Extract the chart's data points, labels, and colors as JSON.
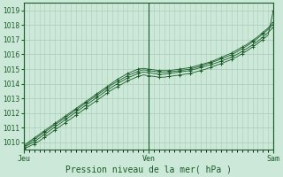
{
  "title": "",
  "xlabel": "Pression niveau de la mer( hPa )",
  "ylabel": "",
  "bg_color": "#cce8d8",
  "grid_color": "#aaccb8",
  "line_color": "#1a5c28",
  "marker_color": "#1a5c28",
  "ylim": [
    1009.5,
    1019.5
  ],
  "xlim": [
    0,
    48
  ],
  "yticks": [
    1010,
    1011,
    1012,
    1013,
    1014,
    1015,
    1016,
    1017,
    1018,
    1019
  ],
  "xtick_positions": [
    0,
    24,
    48
  ],
  "xtick_labels": [
    "Jeu",
    "Ven",
    "Sam"
  ],
  "series": [
    [
      1009.8,
      1010.05,
      1010.3,
      1010.55,
      1010.8,
      1011.05,
      1011.3,
      1011.55,
      1011.8,
      1012.05,
      1012.3,
      1012.55,
      1012.8,
      1013.05,
      1013.3,
      1013.55,
      1013.8,
      1014.05,
      1014.3,
      1014.5,
      1014.7,
      1014.85,
      1015.0,
      1015.05,
      1015.0,
      1014.95,
      1014.9,
      1014.9,
      1014.9,
      1014.95,
      1015.0,
      1015.05,
      1015.1,
      1015.2,
      1015.3,
      1015.4,
      1015.5,
      1015.65,
      1015.8,
      1015.95,
      1016.1,
      1016.3,
      1016.5,
      1016.7,
      1016.95,
      1017.2,
      1017.5,
      1017.8,
      1018.2
    ],
    [
      1009.7,
      1009.95,
      1010.2,
      1010.45,
      1010.7,
      1010.95,
      1011.2,
      1011.45,
      1011.7,
      1011.95,
      1012.2,
      1012.45,
      1012.7,
      1012.95,
      1013.2,
      1013.45,
      1013.7,
      1013.95,
      1014.15,
      1014.35,
      1014.55,
      1014.7,
      1014.85,
      1014.95,
      1014.9,
      1014.85,
      1014.8,
      1014.8,
      1014.82,
      1014.85,
      1014.9,
      1014.95,
      1015.0,
      1015.1,
      1015.2,
      1015.32,
      1015.44,
      1015.56,
      1015.7,
      1015.84,
      1015.98,
      1016.18,
      1016.38,
      1016.6,
      1016.85,
      1017.1,
      1017.4,
      1017.7,
      1018.05
    ],
    [
      1009.65,
      1009.85,
      1010.05,
      1010.3,
      1010.55,
      1010.8,
      1011.05,
      1011.3,
      1011.55,
      1011.8,
      1012.05,
      1012.3,
      1012.55,
      1012.8,
      1013.05,
      1013.3,
      1013.55,
      1013.78,
      1014.0,
      1014.2,
      1014.4,
      1014.55,
      1014.7,
      1014.8,
      1014.75,
      1014.7,
      1014.65,
      1014.65,
      1014.7,
      1014.75,
      1014.8,
      1014.85,
      1014.9,
      1015.0,
      1015.1,
      1015.2,
      1015.3,
      1015.42,
      1015.55,
      1015.68,
      1015.82,
      1016.0,
      1016.2,
      1016.42,
      1016.65,
      1016.9,
      1017.18,
      1017.5,
      1017.85
    ],
    [
      1009.55,
      1009.72,
      1009.9,
      1010.1,
      1010.35,
      1010.6,
      1010.85,
      1011.1,
      1011.35,
      1011.6,
      1011.85,
      1012.1,
      1012.35,
      1012.6,
      1012.85,
      1013.1,
      1013.35,
      1013.6,
      1013.8,
      1014.0,
      1014.2,
      1014.35,
      1014.5,
      1014.6,
      1014.55,
      1014.5,
      1014.45,
      1014.45,
      1014.5,
      1014.55,
      1014.6,
      1014.65,
      1014.7,
      1014.8,
      1014.9,
      1015.0,
      1015.12,
      1015.25,
      1015.38,
      1015.52,
      1015.66,
      1015.84,
      1016.04,
      1016.26,
      1016.5,
      1016.75,
      1017.02,
      1017.32,
      1019.0
    ]
  ]
}
